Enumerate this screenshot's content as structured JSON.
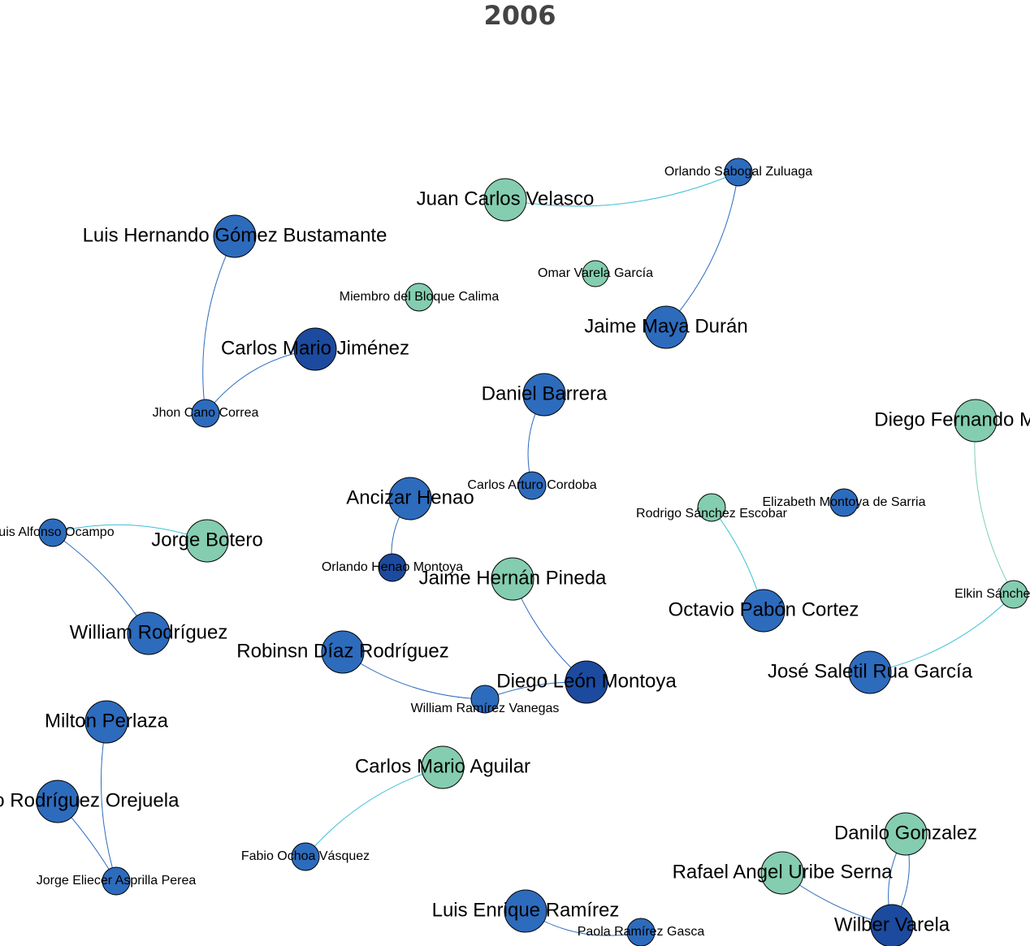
{
  "header": {
    "title": "2006"
  },
  "nodes": [
    {
      "label": "Orlando Sabogal Zuluaga"
    },
    {
      "label": "Juan Carlos Velasco"
    },
    {
      "label": "Luis Hernando Gómez Bustamante"
    },
    {
      "label": "Omar Varela García"
    },
    {
      "label": "Miembro del Bloque Calima"
    },
    {
      "label": "Jaime Maya Durán"
    },
    {
      "label": "Carlos Mario Jiménez"
    },
    {
      "label": "Jhon Cano Correa"
    },
    {
      "label": "Daniel Barrera"
    },
    {
      "label": "Diego Fernando Murillo"
    },
    {
      "label": "Carlos Arturo Cordoba"
    },
    {
      "label": "Ancizar Henao"
    },
    {
      "label": "Rodrigo Sánchez Escobar"
    },
    {
      "label": "Elizabeth Montoya de Sarria"
    },
    {
      "label": "Luis Alfonso Ocampo"
    },
    {
      "label": "Jorge Botero"
    },
    {
      "label": "Orlando Henao Montoya"
    },
    {
      "label": "Jaime Hernán Pineda"
    },
    {
      "label": "Elkin Sánchez Mena"
    },
    {
      "label": "Octavio Pabón Cortez"
    },
    {
      "label": "William Rodríguez"
    },
    {
      "label": "Robinsn Díaz Rodríguez"
    },
    {
      "label": "José Saletil Rua García"
    },
    {
      "label": "Diego León Montoya"
    },
    {
      "label": "William Ramírez Vanegas"
    },
    {
      "label": "Milton Perlaza"
    },
    {
      "label": "Carlos Mario Aguilar"
    },
    {
      "label": "Gilberto Rodríguez Orejuela"
    },
    {
      "label": "Danilo Gonzalez"
    },
    {
      "label": "Fabio Ochoa Vásquez"
    },
    {
      "label": "Rafael Angel Uribe Serna"
    },
    {
      "label": "Jorge Eliecer Asprilla Perea"
    },
    {
      "label": "Luis Enrique Ramírez"
    },
    {
      "label": "Paola Ramírez Gasca"
    },
    {
      "label": "Wilber Varela"
    }
  ]
}
